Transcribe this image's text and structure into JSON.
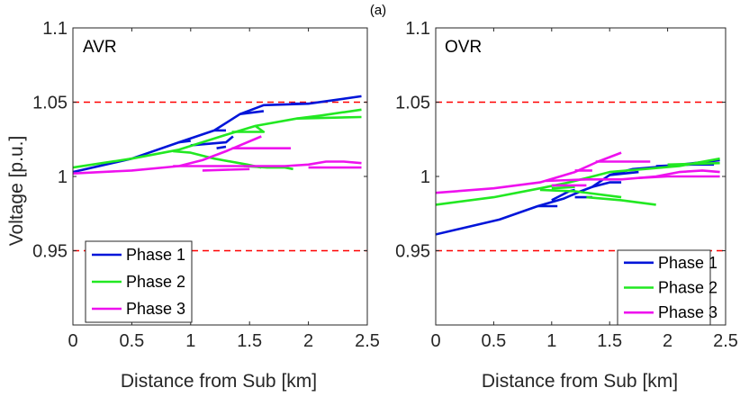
{
  "figure_label": "(a)",
  "colors": {
    "phase1": "#0015d9",
    "phase2": "#22e822",
    "phase3": "#ee11ee",
    "ref": "#ff0000"
  },
  "chart_data": [
    {
      "type": "line",
      "title": "(a)",
      "panel_label": "AVR",
      "xlabel": "Distance from Sub [km]",
      "ylabel": "Voltage [p.u.]",
      "xlim": [
        0,
        2.5
      ],
      "ylim": [
        0.9,
        1.1
      ],
      "xticks": [
        0,
        0.5,
        1,
        1.5,
        2,
        2.5
      ],
      "xtick_labels": [
        "0",
        "0.5",
        "1",
        "1.5",
        "2",
        "2.5"
      ],
      "yticks": [
        0.95,
        1,
        1.05,
        1.1
      ],
      "ytick_labels": [
        "0.95",
        "1",
        "1.05",
        "1.1"
      ],
      "reference_lines": [
        0.95,
        1.05
      ],
      "legend_position": "bottom-left",
      "series": [
        {
          "name": "Phase 1",
          "color": "#0015d9",
          "segments": [
            [
              [
                0,
                1.003
              ],
              [
                0.5,
                1.012
              ],
              [
                0.9,
                1.023
              ],
              [
                1.2,
                1.031
              ],
              [
                1.42,
                1.042
              ],
              [
                1.62,
                1.048
              ],
              [
                2.0,
                1.049
              ],
              [
                2.45,
                1.054
              ]
            ],
            [
              [
                0.9,
                1.023
              ],
              [
                1.0,
                1.024
              ]
            ],
            [
              [
                1.2,
                1.031
              ],
              [
                1.3,
                1.031
              ]
            ],
            [
              [
                1.0,
                1.021
              ],
              [
                1.3,
                1.023
              ],
              [
                1.36,
                1.027
              ]
            ],
            [
              [
                1.22,
                1.019
              ],
              [
                1.3,
                1.02
              ]
            ],
            [
              [
                1.42,
                1.042
              ],
              [
                1.62,
                1.044
              ]
            ],
            [
              [
                1.85,
                1.049
              ],
              [
                2.0,
                1.049
              ]
            ]
          ]
        },
        {
          "name": "Phase 2",
          "color": "#22e822",
          "segments": [
            [
              [
                0,
                1.006
              ],
              [
                0.5,
                1.012
              ],
              [
                0.9,
                1.018
              ],
              [
                1.3,
                1.028
              ],
              [
                1.55,
                1.034
              ],
              [
                1.9,
                1.039
              ],
              [
                2.1,
                1.041
              ],
              [
                2.45,
                1.045
              ]
            ],
            [
              [
                1.9,
                1.039
              ],
              [
                2.45,
                1.04
              ]
            ],
            [
              [
                1.55,
                1.034
              ],
              [
                1.62,
                1.03
              ],
              [
                1.35,
                1.03
              ]
            ],
            [
              [
                0.85,
                1.017
              ],
              [
                1.0,
                1.016
              ],
              [
                1.2,
                1.012
              ],
              [
                1.48,
                1.008
              ],
              [
                1.6,
                1.006
              ]
            ],
            [
              [
                1.45,
                1.007
              ],
              [
                1.65,
                1.006
              ],
              [
                1.8,
                1.006
              ],
              [
                1.87,
                1.005
              ]
            ]
          ]
        },
        {
          "name": "Phase 3",
          "color": "#ee11ee",
          "segments": [
            [
              [
                0,
                1.002
              ],
              [
                0.5,
                1.004
              ],
              [
                0.9,
                1.007
              ],
              [
                1.1,
                1.011
              ],
              [
                1.3,
                1.017
              ],
              [
                1.6,
                1.027
              ]
            ],
            [
              [
                1.35,
                1.019
              ],
              [
                1.85,
                1.019
              ]
            ],
            [
              [
                0.85,
                1.007
              ],
              [
                1.5,
                1.007
              ],
              [
                1.8,
                1.007
              ],
              [
                2.0,
                1.008
              ],
              [
                2.15,
                1.01
              ],
              [
                2.3,
                1.01
              ],
              [
                2.45,
                1.009
              ]
            ],
            [
              [
                1.1,
                1.004
              ],
              [
                1.5,
                1.005
              ]
            ],
            [
              [
                2.0,
                1.006
              ],
              [
                2.45,
                1.006
              ]
            ]
          ]
        }
      ]
    },
    {
      "type": "line",
      "panel_label": "OVR",
      "xlabel": "Distance from Sub [km]",
      "ylabel": "",
      "xlim": [
        0,
        2.5
      ],
      "ylim": [
        0.9,
        1.1
      ],
      "xticks": [
        0,
        0.5,
        1,
        1.5,
        2,
        2.5
      ],
      "xtick_labels": [
        "0",
        "0.5",
        "1",
        "1.5",
        "2",
        "2.5"
      ],
      "yticks": [
        0.95,
        1,
        1.05,
        1.1
      ],
      "ytick_labels": [
        "0.95",
        "1",
        "1.05",
        "1.1"
      ],
      "reference_lines": [
        0.95,
        1.05
      ],
      "legend_position": "bottom-right",
      "series": [
        {
          "name": "Phase 1",
          "color": "#0015d9",
          "segments": [
            [
              [
                0,
                0.961
              ],
              [
                0.55,
                0.971
              ],
              [
                0.88,
                0.98
              ],
              [
                1.1,
                0.985
              ],
              [
                1.25,
                0.99
              ],
              [
                1.35,
                0.993
              ],
              [
                1.5,
                1.001
              ],
              [
                1.7,
                1.005
              ],
              [
                2.0,
                1.007
              ],
              [
                2.45,
                1.011
              ]
            ],
            [
              [
                0.88,
                0.98
              ],
              [
                1.05,
                0.98
              ]
            ],
            [
              [
                1.0,
                0.984
              ],
              [
                1.15,
                0.99
              ],
              [
                1.2,
                0.991
              ]
            ],
            [
              [
                1.2,
                0.986
              ],
              [
                1.35,
                0.986
              ]
            ],
            [
              [
                1.35,
                0.993
              ],
              [
                1.5,
                0.996
              ],
              [
                1.6,
                0.996
              ]
            ],
            [
              [
                1.5,
                1.001
              ],
              [
                1.75,
                1.003
              ]
            ],
            [
              [
                1.9,
                1.007
              ],
              [
                2.2,
                1.008
              ],
              [
                2.4,
                1.008
              ]
            ]
          ]
        },
        {
          "name": "Phase 2",
          "color": "#22e822",
          "segments": [
            [
              [
                0,
                0.981
              ],
              [
                0.5,
                0.986
              ],
              [
                0.9,
                0.992
              ],
              [
                1.15,
                0.996
              ],
              [
                1.3,
                0.999
              ],
              [
                1.5,
                1.003
              ],
              [
                1.8,
                1.005
              ],
              [
                2.1,
                1.007
              ],
              [
                2.45,
                1.012
              ]
            ],
            [
              [
                0.9,
                0.991
              ],
              [
                1.2,
                0.99
              ],
              [
                1.6,
                0.986
              ]
            ],
            [
              [
                1.3,
                0.986
              ],
              [
                1.6,
                0.984
              ],
              [
                1.9,
                0.981
              ]
            ],
            [
              [
                1.0,
                0.992
              ],
              [
                1.2,
                0.993
              ]
            ],
            [
              [
                2.0,
                1.008
              ],
              [
                2.45,
                1.009
              ]
            ]
          ]
        },
        {
          "name": "Phase 3",
          "color": "#ee11ee",
          "segments": [
            [
              [
                0,
                0.989
              ],
              [
                0.5,
                0.992
              ],
              [
                0.9,
                0.996
              ],
              [
                1.2,
                1.003
              ],
              [
                1.4,
                1.01
              ],
              [
                1.6,
                1.016
              ]
            ],
            [
              [
                1.38,
                1.01
              ],
              [
                1.85,
                1.01
              ]
            ],
            [
              [
                1.2,
                1.004
              ],
              [
                1.35,
                1.004
              ]
            ],
            [
              [
                0.95,
                0.997
              ],
              [
                1.3,
                0.998
              ],
              [
                1.6,
                0.998
              ],
              [
                1.9,
                1.0
              ],
              [
                2.1,
                1.003
              ],
              [
                2.3,
                1.004
              ],
              [
                2.45,
                1.003
              ]
            ],
            [
              [
                1.0,
                0.994
              ],
              [
                1.3,
                0.994
              ]
            ],
            [
              [
                1.75,
                0.999
              ],
              [
                2.0,
                1.0
              ],
              [
                2.45,
                1.0
              ]
            ]
          ]
        }
      ]
    }
  ]
}
